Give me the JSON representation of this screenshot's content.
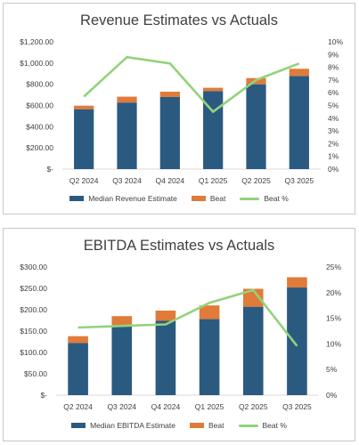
{
  "colors": {
    "median": "#2b5a80",
    "beat": "#e07b39",
    "beat_pct": "#92d37b"
  },
  "chart_data": [
    {
      "type": "bar",
      "title": "Revenue Estimates vs Actuals",
      "categories": [
        "Q2 2024",
        "Q3 2024",
        "Q4 2024",
        "Q1 2025",
        "Q2 2025",
        "Q3 2025"
      ],
      "series": [
        {
          "name": "Median Revenue Estimate",
          "kind": "stacked-bar",
          "values": [
            565,
            628,
            680,
            735,
            800,
            878
          ]
        },
        {
          "name": "Beat",
          "kind": "stacked-bar",
          "values": [
            33,
            55,
            50,
            32,
            58,
            68
          ]
        },
        {
          "name": "Beat %",
          "kind": "line",
          "axis": "secondary",
          "values": [
            5.7,
            8.8,
            8.3,
            4.5,
            7.0,
            8.3
          ]
        }
      ],
      "ylim": [
        0,
        1200
      ],
      "yticks": [
        "$-",
        "$200.00",
        "$400.00",
        "$600.00",
        "$800.00",
        "$1,000.00",
        "$1,200.00"
      ],
      "y2lim": [
        0,
        10
      ],
      "y2ticks": [
        "0%",
        "1%",
        "2%",
        "3%",
        "4%",
        "5%",
        "6%",
        "7%",
        "8%",
        "9%",
        "10%"
      ],
      "grid": false,
      "legend_position": "bottom"
    },
    {
      "type": "bar",
      "title": "EBITDA Estimates vs Actuals",
      "categories": [
        "Q2 2024",
        "Q3 2024",
        "Q4 2024",
        "Q1 2025",
        "Q2 2025",
        "Q3 2025"
      ],
      "series": [
        {
          "name": "Median EBITDA Estimate",
          "kind": "stacked-bar",
          "values": [
            122,
            163,
            174,
            178,
            207,
            252
          ]
        },
        {
          "name": "Beat",
          "kind": "stacked-bar",
          "values": [
            16,
            22,
            24,
            32,
            42,
            24
          ]
        },
        {
          "name": "Beat %",
          "kind": "line",
          "axis": "secondary",
          "values": [
            13.2,
            13.5,
            13.8,
            18.0,
            20.5,
            9.6
          ]
        }
      ],
      "ylim": [
        0,
        300
      ],
      "yticks": [
        "$-",
        "$50.00",
        "$100.00",
        "$150.00",
        "$200.00",
        "$250.00",
        "$300.00"
      ],
      "y2lim": [
        0,
        25
      ],
      "y2ticks": [
        "0%",
        "5%",
        "10%",
        "15%",
        "20%",
        "25%"
      ],
      "grid": false,
      "legend_position": "bottom"
    }
  ]
}
